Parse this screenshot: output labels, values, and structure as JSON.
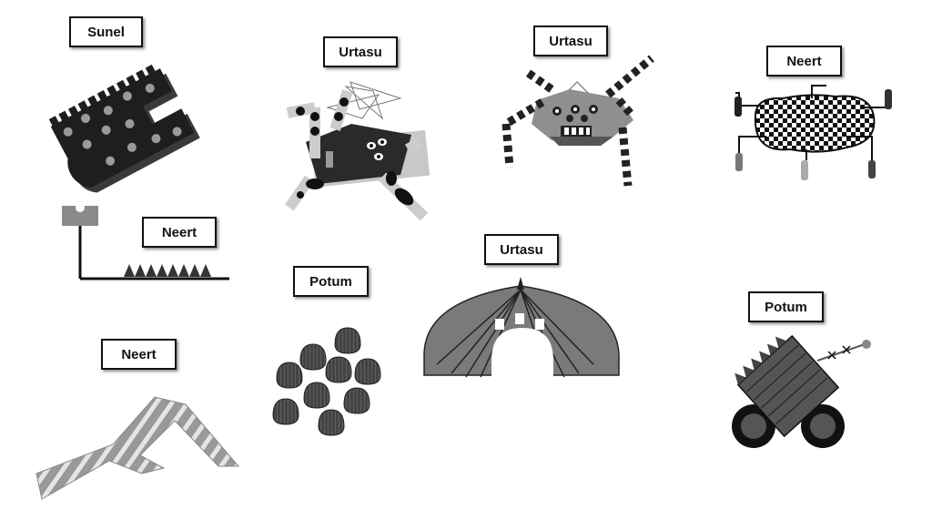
{
  "items": [
    {
      "name": "Sunel"
    },
    {
      "name": "Urtasu"
    },
    {
      "name": "Urtasu"
    },
    {
      "name": "Neert"
    },
    {
      "name": "Neert"
    },
    {
      "name": "Potum"
    },
    {
      "name": "Urtasu"
    },
    {
      "name": "Potum"
    },
    {
      "name": "Neert"
    }
  ]
}
